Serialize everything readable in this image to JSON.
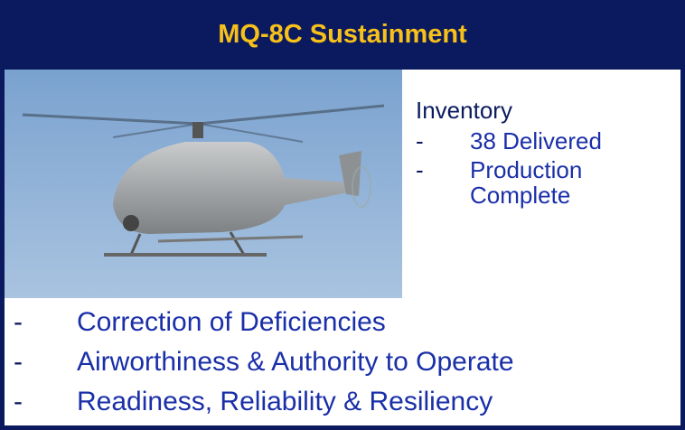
{
  "header": {
    "title": "MQ-8C Sustainment"
  },
  "inventory": {
    "heading": "Inventory",
    "items": [
      "38 Delivered",
      "Production Complete"
    ]
  },
  "bullet": "-",
  "list": [
    "Correction of Deficiencies",
    "Airworthiness & Authority to Operate",
    "Readiness, Reliability & Resiliency"
  ]
}
